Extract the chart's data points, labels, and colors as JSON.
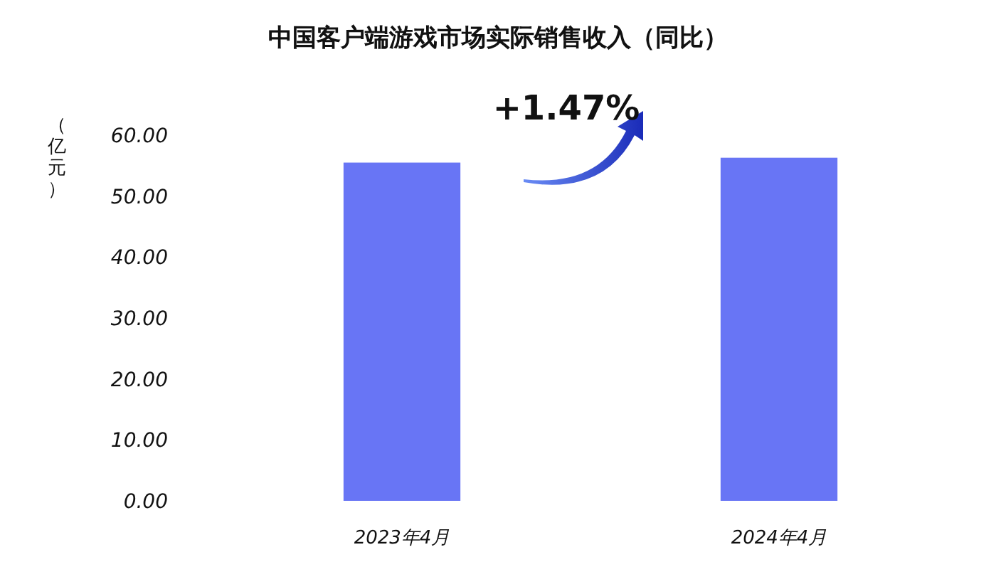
{
  "chart_data": {
    "type": "bar",
    "title": "中国客户端游戏市场实际销售收入（同比）",
    "ylabel": "（亿元）",
    "categories": [
      "2023年4月",
      "2024年4月"
    ],
    "values": [
      55.5,
      56.3
    ],
    "color": "#6875f5",
    "ylim": [
      0,
      60
    ],
    "yticks": [
      {
        "value": 0,
        "label": "0.00"
      },
      {
        "value": 10,
        "label": "10.00"
      },
      {
        "value": 20,
        "label": "20.00"
      },
      {
        "value": 30,
        "label": "30.00"
      },
      {
        "value": 40,
        "label": "40.00"
      },
      {
        "value": 50,
        "label": "50.00"
      },
      {
        "value": 60,
        "label": "60.00"
      }
    ],
    "annotations": [
      "+1.47%"
    ]
  }
}
